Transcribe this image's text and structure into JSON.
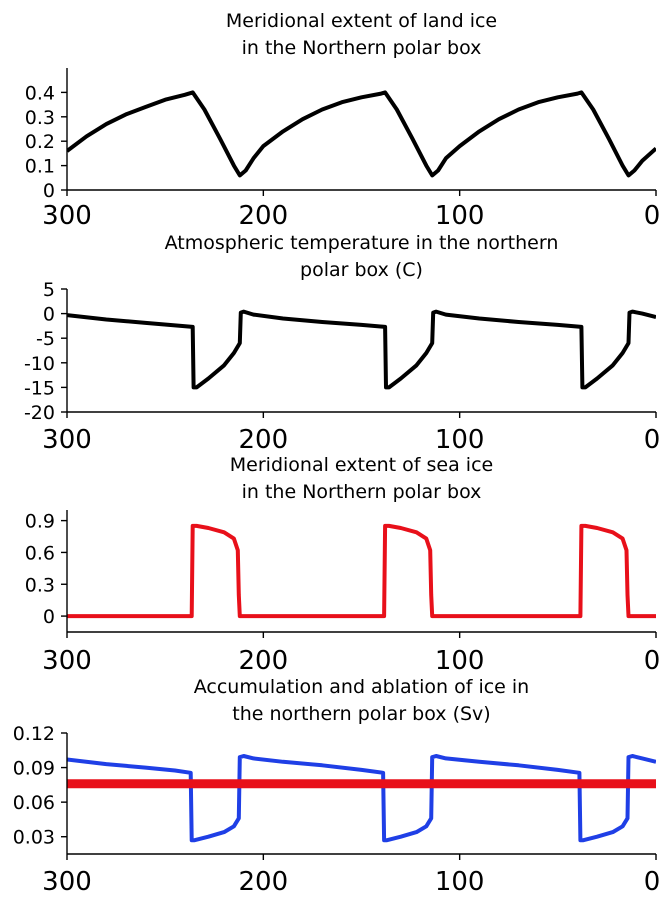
{
  "chart_data": [
    {
      "type": "line",
      "title": "Meridional extent of land ice\n in the Northern polar box",
      "xlabel": "",
      "ylabel": "",
      "xlim": [
        300,
        0
      ],
      "ylim": [
        0,
        0.5
      ],
      "xticks": [
        "300",
        "200",
        "100",
        "0"
      ],
      "yticks": [
        "0",
        "0.1",
        "0.2",
        "0.3",
        "0.4"
      ],
      "series": [
        {
          "color": "#000000",
          "x": [
            300,
            290,
            280,
            270,
            260,
            250,
            240,
            236,
            230,
            222,
            215,
            212,
            209,
            205,
            200,
            190,
            180,
            170,
            160,
            150,
            140,
            138,
            132,
            124,
            117,
            114,
            111,
            107,
            100,
            90,
            80,
            70,
            60,
            50,
            40,
            38,
            32,
            24,
            17,
            14,
            11,
            7,
            0
          ],
          "y": [
            0.16,
            0.22,
            0.27,
            0.31,
            0.34,
            0.37,
            0.39,
            0.4,
            0.33,
            0.21,
            0.1,
            0.06,
            0.08,
            0.13,
            0.18,
            0.24,
            0.29,
            0.33,
            0.36,
            0.38,
            0.395,
            0.4,
            0.33,
            0.21,
            0.1,
            0.06,
            0.08,
            0.13,
            0.18,
            0.24,
            0.29,
            0.33,
            0.36,
            0.38,
            0.395,
            0.4,
            0.33,
            0.21,
            0.1,
            0.06,
            0.08,
            0.12,
            0.17
          ]
        }
      ]
    },
    {
      "type": "line",
      "title": "Atmospheric temperature in the northern\npolar box (C)",
      "xlabel": "",
      "ylabel": "",
      "xlim": [
        300,
        0
      ],
      "ylim": [
        -20,
        5
      ],
      "xticks": [
        "300",
        "200",
        "100",
        "0"
      ],
      "yticks": [
        "5",
        "0",
        "-5",
        "-10",
        "-15",
        "-20"
      ],
      "series": [
        {
          "color": "#000000",
          "x": [
            300,
            280,
            260,
            245,
            236,
            235.5,
            234,
            228,
            220,
            215,
            212,
            211.5,
            210,
            205,
            190,
            170,
            150,
            138,
            137.5,
            136,
            130,
            122,
            117,
            114,
            113.5,
            112,
            107,
            90,
            70,
            50,
            38,
            37.5,
            36,
            30,
            22,
            17,
            14,
            13.5,
            12,
            7,
            0
          ],
          "y": [
            -0.3,
            -1.2,
            -1.9,
            -2.4,
            -2.7,
            -15.0,
            -15.0,
            -13.2,
            -10.5,
            -8.0,
            -6.0,
            0.2,
            0.4,
            -0.2,
            -1.0,
            -1.7,
            -2.3,
            -2.7,
            -15.0,
            -15.0,
            -13.2,
            -10.5,
            -8.0,
            -6.0,
            0.2,
            0.4,
            -0.2,
            -1.0,
            -1.7,
            -2.3,
            -2.7,
            -15.0,
            -15.0,
            -13.2,
            -10.5,
            -8.0,
            -6.0,
            0.2,
            0.4,
            0.0,
            -0.7
          ]
        }
      ]
    },
    {
      "type": "line",
      "title": "Meridional extent of sea ice\n in the Northern polar box",
      "xlabel": "",
      "ylabel": "",
      "xlim": [
        300,
        0
      ],
      "ylim": [
        -0.15,
        1.0
      ],
      "xticks": [
        "300",
        "200",
        "100",
        "0"
      ],
      "yticks": [
        "0.9",
        "0.6",
        "0.3",
        "0"
      ],
      "series": [
        {
          "color": "#e8101a",
          "x": [
            300,
            236.5,
            236,
            234,
            228,
            220,
            215,
            213,
            212.5,
            212,
            138.5,
            138,
            136,
            130,
            122,
            117,
            115,
            114.5,
            114,
            38.5,
            38,
            36,
            30,
            22,
            17,
            15,
            14.5,
            14,
            0
          ],
          "y": [
            0,
            0,
            0.85,
            0.85,
            0.83,
            0.79,
            0.73,
            0.62,
            0.2,
            0,
            0,
            0.85,
            0.85,
            0.83,
            0.79,
            0.73,
            0.62,
            0.2,
            0,
            0,
            0.85,
            0.85,
            0.83,
            0.79,
            0.73,
            0.62,
            0.2,
            0,
            0
          ]
        }
      ]
    },
    {
      "type": "line",
      "title": "Accumulation and ablation of ice in\nthe northern polar box (Sv)",
      "xlabel": "",
      "ylabel": "",
      "xlim": [
        300,
        0
      ],
      "ylim": [
        0.015,
        0.12
      ],
      "xticks": [
        "300",
        "200",
        "100",
        "0"
      ],
      "yticks": [
        "0.12",
        "0.09",
        "0.06",
        "0.03"
      ],
      "series": [
        {
          "color": "#1f3fe6",
          "x": [
            300,
            280,
            260,
            245,
            237,
            236.5,
            235,
            228,
            220,
            215,
            212.5,
            212,
            210,
            205,
            190,
            170,
            150,
            139,
            138.5,
            137,
            130,
            122,
            117,
            114.5,
            114,
            112,
            107,
            90,
            70,
            50,
            39,
            38.5,
            37,
            30,
            22,
            17,
            14.5,
            14,
            12,
            7,
            0
          ],
          "y": [
            0.097,
            0.093,
            0.09,
            0.0875,
            0.0855,
            0.027,
            0.027,
            0.03,
            0.034,
            0.039,
            0.046,
            0.099,
            0.1,
            0.098,
            0.095,
            0.092,
            0.088,
            0.0855,
            0.027,
            0.027,
            0.03,
            0.034,
            0.039,
            0.046,
            0.099,
            0.1,
            0.098,
            0.095,
            0.092,
            0.088,
            0.0855,
            0.027,
            0.027,
            0.03,
            0.034,
            0.039,
            0.046,
            0.099,
            0.1,
            0.098,
            0.095
          ]
        },
        {
          "color": "#e8101a",
          "x": [
            300,
            0
          ],
          "y": [
            0.076,
            0.076
          ]
        }
      ]
    }
  ]
}
